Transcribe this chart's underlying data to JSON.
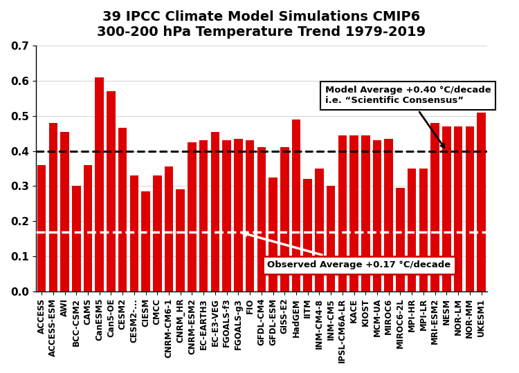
{
  "title_line1": "39 IPCC Climate Model Simulations CMIP6",
  "title_line2": "300-200 hPa Temperature Trend 1979-2019",
  "categories": [
    "ACCESS",
    "ACCESS-ESM",
    "AWI",
    "BCC-CSM2",
    "CAMS",
    "CanESM5",
    "Can5-OE",
    "CESM2",
    "CESM2-...",
    "CIESM",
    "CMCC",
    "CNRM-CM6-1",
    "CNRM_HR",
    "CNRM-ESM2",
    "EC-EARTH3",
    "EC-E3-VEG",
    "FGOALS-f3",
    "FGOALS-g3",
    "FIO",
    "GFDL-CM4",
    "GFDL-ESM",
    "GISS-E2",
    "HadGEM",
    "IITM",
    "INM-CM4-8",
    "INM-CM5",
    "IPSL-CM6A-LR",
    "KACE",
    "KIOST",
    "MCM-UA",
    "MIROC6",
    "MIROC6-2L",
    "MPI-HR",
    "MPI-LR",
    "MRI-ESM2",
    "NESM",
    "NOR-LM",
    "NOR-MM",
    "UKESM1"
  ],
  "values": [
    0.36,
    0.48,
    0.455,
    0.3,
    0.36,
    0.61,
    0.57,
    0.465,
    0.33,
    0.285,
    0.33,
    0.355,
    0.29,
    0.425,
    0.43,
    0.455,
    0.43,
    0.435,
    0.43,
    0.41,
    0.325,
    0.41,
    0.49,
    0.32,
    0.35,
    0.3,
    0.445,
    0.445,
    0.445,
    0.43,
    0.435,
    0.295,
    0.35,
    0.35,
    0.48,
    0.47,
    0.47,
    0.47,
    0.51
  ],
  "bar_color": "#DD0000",
  "model_avg": 0.4,
  "obs_avg": 0.17,
  "model_avg_label_line1": "Model Average +0.40 °C/decade",
  "model_avg_label_line2": "i.e. “Scientific Consensus”",
  "obs_avg_label": "Observed Average +0.17 °C/decade",
  "ylim": [
    0.0,
    0.7
  ],
  "yticks": [
    0.0,
    0.1,
    0.2,
    0.3,
    0.4,
    0.5,
    0.6,
    0.7
  ],
  "background_color": "#ffffff",
  "title_fontsize": 14,
  "tick_fontsize": 8.5
}
